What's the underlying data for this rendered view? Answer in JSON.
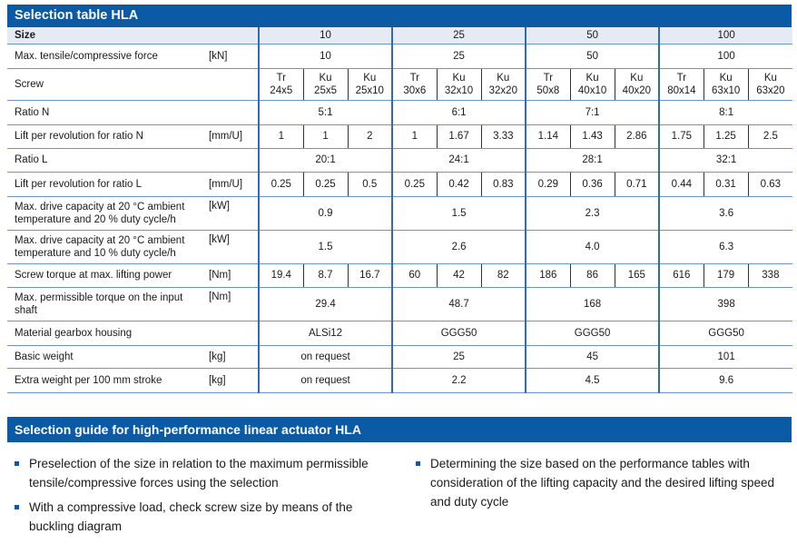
{
  "title": "Selection table HLA",
  "colors": {
    "header_bg": "#0a5aa5",
    "size_row_bg": "#e6eaf5",
    "row_border": "#6b94c8"
  },
  "table": {
    "size_row": {
      "label": "Size",
      "values": [
        "10",
        "25",
        "50",
        "100"
      ]
    },
    "rows": [
      {
        "label": "Max. tensile/compressive force",
        "unit": "[kN]",
        "group": [
          "10",
          "25",
          "50",
          "100"
        ]
      },
      {
        "label": "Screw",
        "unit": "",
        "sub": [
          "Tr 24x5",
          "Ku 25x5",
          "Ku 25x10",
          "Tr 30x6",
          "Ku 32x10",
          "Ku 32x20",
          "Tr 50x8",
          "Ku 40x10",
          "Ku 40x20",
          "Tr 80x14",
          "Ku 63x10",
          "Ku 63x20"
        ]
      },
      {
        "label": "Ratio N",
        "unit": "",
        "group": [
          "5:1",
          "6:1",
          "7:1",
          "8:1"
        ]
      },
      {
        "label": "Lift per revolution for ratio N",
        "unit": "[mm/U]",
        "sub": [
          "1",
          "1",
          "2",
          "1",
          "1.67",
          "3.33",
          "1.14",
          "1.43",
          "2.86",
          "1.75",
          "1.25",
          "2.5"
        ]
      },
      {
        "label": "Ratio L",
        "unit": "",
        "group": [
          "20:1",
          "24:1",
          "28:1",
          "32:1"
        ]
      },
      {
        "label": "Lift per revolution for ratio L",
        "unit": "[mm/U]",
        "sub": [
          "0.25",
          "0.25",
          "0.5",
          "0.25",
          "0.42",
          "0.83",
          "0.29",
          "0.36",
          "0.71",
          "0.44",
          "0.31",
          "0.63"
        ]
      },
      {
        "label": "Max. drive capacity at 20 °C ambient temperature and 20 % duty cycle/h",
        "unit": "[kW]",
        "group": [
          "0.9",
          "1.5",
          "2.3",
          "3.6"
        ]
      },
      {
        "label": "Max. drive capacity at 20 °C ambient temperature and 10 % duty cycle/h",
        "unit": "[kW]",
        "group": [
          "1.5",
          "2.6",
          "4.0",
          "6.3"
        ]
      },
      {
        "label": "Screw torque at max. lifting power",
        "unit": "[Nm]",
        "sub": [
          "19.4",
          "8.7",
          "16.7",
          "60",
          "42",
          "82",
          "186",
          "86",
          "165",
          "616",
          "179",
          "338"
        ]
      },
      {
        "label": "Max. permissible torque on the input shaft",
        "unit": "[Nm]",
        "group": [
          "29.4",
          "48.7",
          "168",
          "398"
        ]
      },
      {
        "label": "Material gearbox housing",
        "unit": "",
        "group": [
          "ALSi12",
          "GGG50",
          "GGG50",
          "GGG50"
        ]
      },
      {
        "label": "Basic weight",
        "unit": "[kg]",
        "group": [
          "on request",
          "25",
          "45",
          "101"
        ]
      },
      {
        "label": "Extra weight per 100 mm stroke",
        "unit": "[kg]",
        "group": [
          "on request",
          "2.2",
          "4.5",
          "9.6"
        ]
      }
    ]
  },
  "guide": {
    "title": "Selection guide for high-performance linear actuator HLA",
    "left": [
      "Preselection of the size in relation to the maximum permissible tensile/compressive forces using the selection",
      "With a compressive load, check screw size by means of the buckling diagram"
    ],
    "right": [
      "Determining the size based on the performance tables with consideration of the lifting capacity and the desired lifting speed and duty cycle"
    ]
  }
}
